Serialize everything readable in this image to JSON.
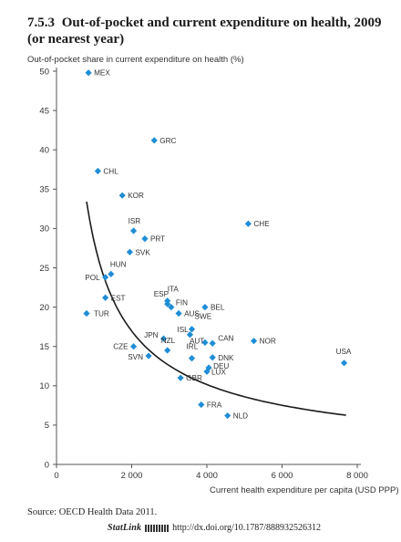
{
  "title": {
    "number": "7.5.3",
    "text": "Out-of-pocket and current expenditure on health, 2009 (or nearest year)"
  },
  "source": "Source: OECD Health Data 2011.",
  "statlink": {
    "brand": "StatLink",
    "logo_icon": "statlink-barcode-icon",
    "url": "http://dx.doi.org/10.1787/888932526312"
  },
  "chart_data": {
    "type": "scatter",
    "xlabel": "Current health expenditure per capita (USD PPP)",
    "ylabel": "Out-of-pocket share in current expenditure on health (%)",
    "xlim": [
      0,
      8000
    ],
    "ylim": [
      0,
      50
    ],
    "xticks": [
      0,
      2000,
      4000,
      6000,
      8000
    ],
    "xtick_labels": [
      "0",
      "2 000",
      "4 000",
      "6 000",
      "8 000"
    ],
    "yticks": [
      0,
      5,
      10,
      15,
      20,
      25,
      30,
      35,
      40,
      45,
      50
    ],
    "grid": false,
    "marker_color": "#1f8dd6",
    "trend_color": "#1a1a1a",
    "trend": {
      "type": "power",
      "x_range": [
        800,
        7700
      ],
      "coef": 4700,
      "exponent": -0.74
    },
    "points": [
      {
        "label": "MEX",
        "x": 850,
        "y": 49.8
      },
      {
        "label": "GRC",
        "x": 2600,
        "y": 41.2
      },
      {
        "label": "CHL",
        "x": 1100,
        "y": 37.3
      },
      {
        "label": "KOR",
        "x": 1750,
        "y": 34.2
      },
      {
        "label": "CHE",
        "x": 5100,
        "y": 30.6
      },
      {
        "label": "ISR",
        "x": 2050,
        "y": 29.7
      },
      {
        "label": "PRT",
        "x": 2350,
        "y": 28.7
      },
      {
        "label": "SVK",
        "x": 1950,
        "y": 27.0
      },
      {
        "label": "HUN",
        "x": 1450,
        "y": 24.2
      },
      {
        "label": "POL",
        "x": 1300,
        "y": 23.8
      },
      {
        "label": "EST",
        "x": 1300,
        "y": 21.2
      },
      {
        "label": "ITA",
        "x": 2950,
        "y": 20.8
      },
      {
        "label": "ESP",
        "x": 2950,
        "y": 20.4
      },
      {
        "label": "FIN",
        "x": 3050,
        "y": 20.0
      },
      {
        "label": "BEL",
        "x": 3950,
        "y": 20.0
      },
      {
        "label": "TUR",
        "x": 800,
        "y": 19.2
      },
      {
        "label": "AUS",
        "x": 3250,
        "y": 19.2
      },
      {
        "label": "SWE",
        "x": 3600,
        "y": 17.2
      },
      {
        "label": "ISL",
        "x": 3550,
        "y": 16.5
      },
      {
        "label": "JPN",
        "x": 2850,
        "y": 16.0
      },
      {
        "label": "NOR",
        "x": 5250,
        "y": 15.7
      },
      {
        "label": "AUT",
        "x": 3950,
        "y": 15.5
      },
      {
        "label": "CAN",
        "x": 4150,
        "y": 15.4
      },
      {
        "label": "CZE",
        "x": 2050,
        "y": 15.0
      },
      {
        "label": "NZL",
        "x": 2950,
        "y": 14.5
      },
      {
        "label": "SVN",
        "x": 2450,
        "y": 13.8
      },
      {
        "label": "DNK",
        "x": 4150,
        "y": 13.6
      },
      {
        "label": "IRL",
        "x": 3600,
        "y": 13.5
      },
      {
        "label": "USA",
        "x": 7650,
        "y": 12.9
      },
      {
        "label": "DEU",
        "x": 4050,
        "y": 12.3
      },
      {
        "label": "LUX",
        "x": 4000,
        "y": 11.8
      },
      {
        "label": "GBR",
        "x": 3300,
        "y": 11.0
      },
      {
        "label": "FRA",
        "x": 3850,
        "y": 7.6
      },
      {
        "label": "NLD",
        "x": 4550,
        "y": 6.2
      }
    ]
  }
}
